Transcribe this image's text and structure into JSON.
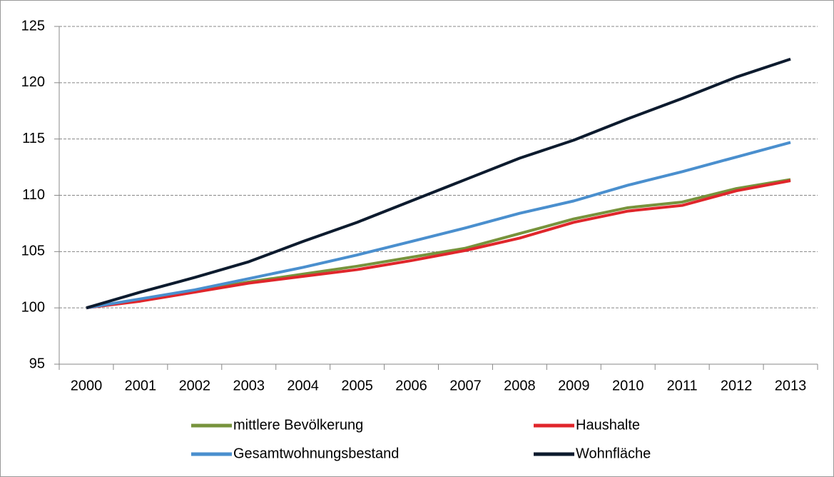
{
  "chart_data": {
    "type": "line",
    "categories": [
      "2000",
      "2001",
      "2002",
      "2003",
      "2004",
      "2005",
      "2006",
      "2007",
      "2008",
      "2009",
      "2010",
      "2011",
      "2012",
      "2013"
    ],
    "series": [
      {
        "name": "mittlere Bevölkerung",
        "color": "#77933c",
        "values": [
          100,
          100.7,
          101.5,
          102.3,
          103.0,
          103.7,
          104.5,
          105.3,
          106.6,
          107.9,
          108.9,
          109.4,
          110.6,
          111.4
        ]
      },
      {
        "name": "Haushalte",
        "color": "#e0262b",
        "values": [
          100,
          100.6,
          101.4,
          102.2,
          102.8,
          103.4,
          104.2,
          105.1,
          106.2,
          107.6,
          108.6,
          109.1,
          110.4,
          111.3
        ]
      },
      {
        "name": "Gesamtwohnungsbestand",
        "color": "#4a8fce",
        "values": [
          100,
          100.8,
          101.6,
          102.6,
          103.6,
          104.7,
          105.9,
          107.1,
          108.4,
          109.5,
          110.9,
          112.1,
          113.4,
          114.7
        ]
      },
      {
        "name": "Wohnfläche",
        "color": "#0d1b2e",
        "values": [
          100,
          101.4,
          102.7,
          104.1,
          105.9,
          107.6,
          109.5,
          111.4,
          113.3,
          114.9,
          116.8,
          118.6,
          120.5,
          122.1
        ]
      }
    ],
    "ylim": [
      95,
      125
    ],
    "yticks": [
      95,
      100,
      105,
      110,
      115,
      120,
      125
    ],
    "grid": true,
    "legend": "bottom"
  }
}
